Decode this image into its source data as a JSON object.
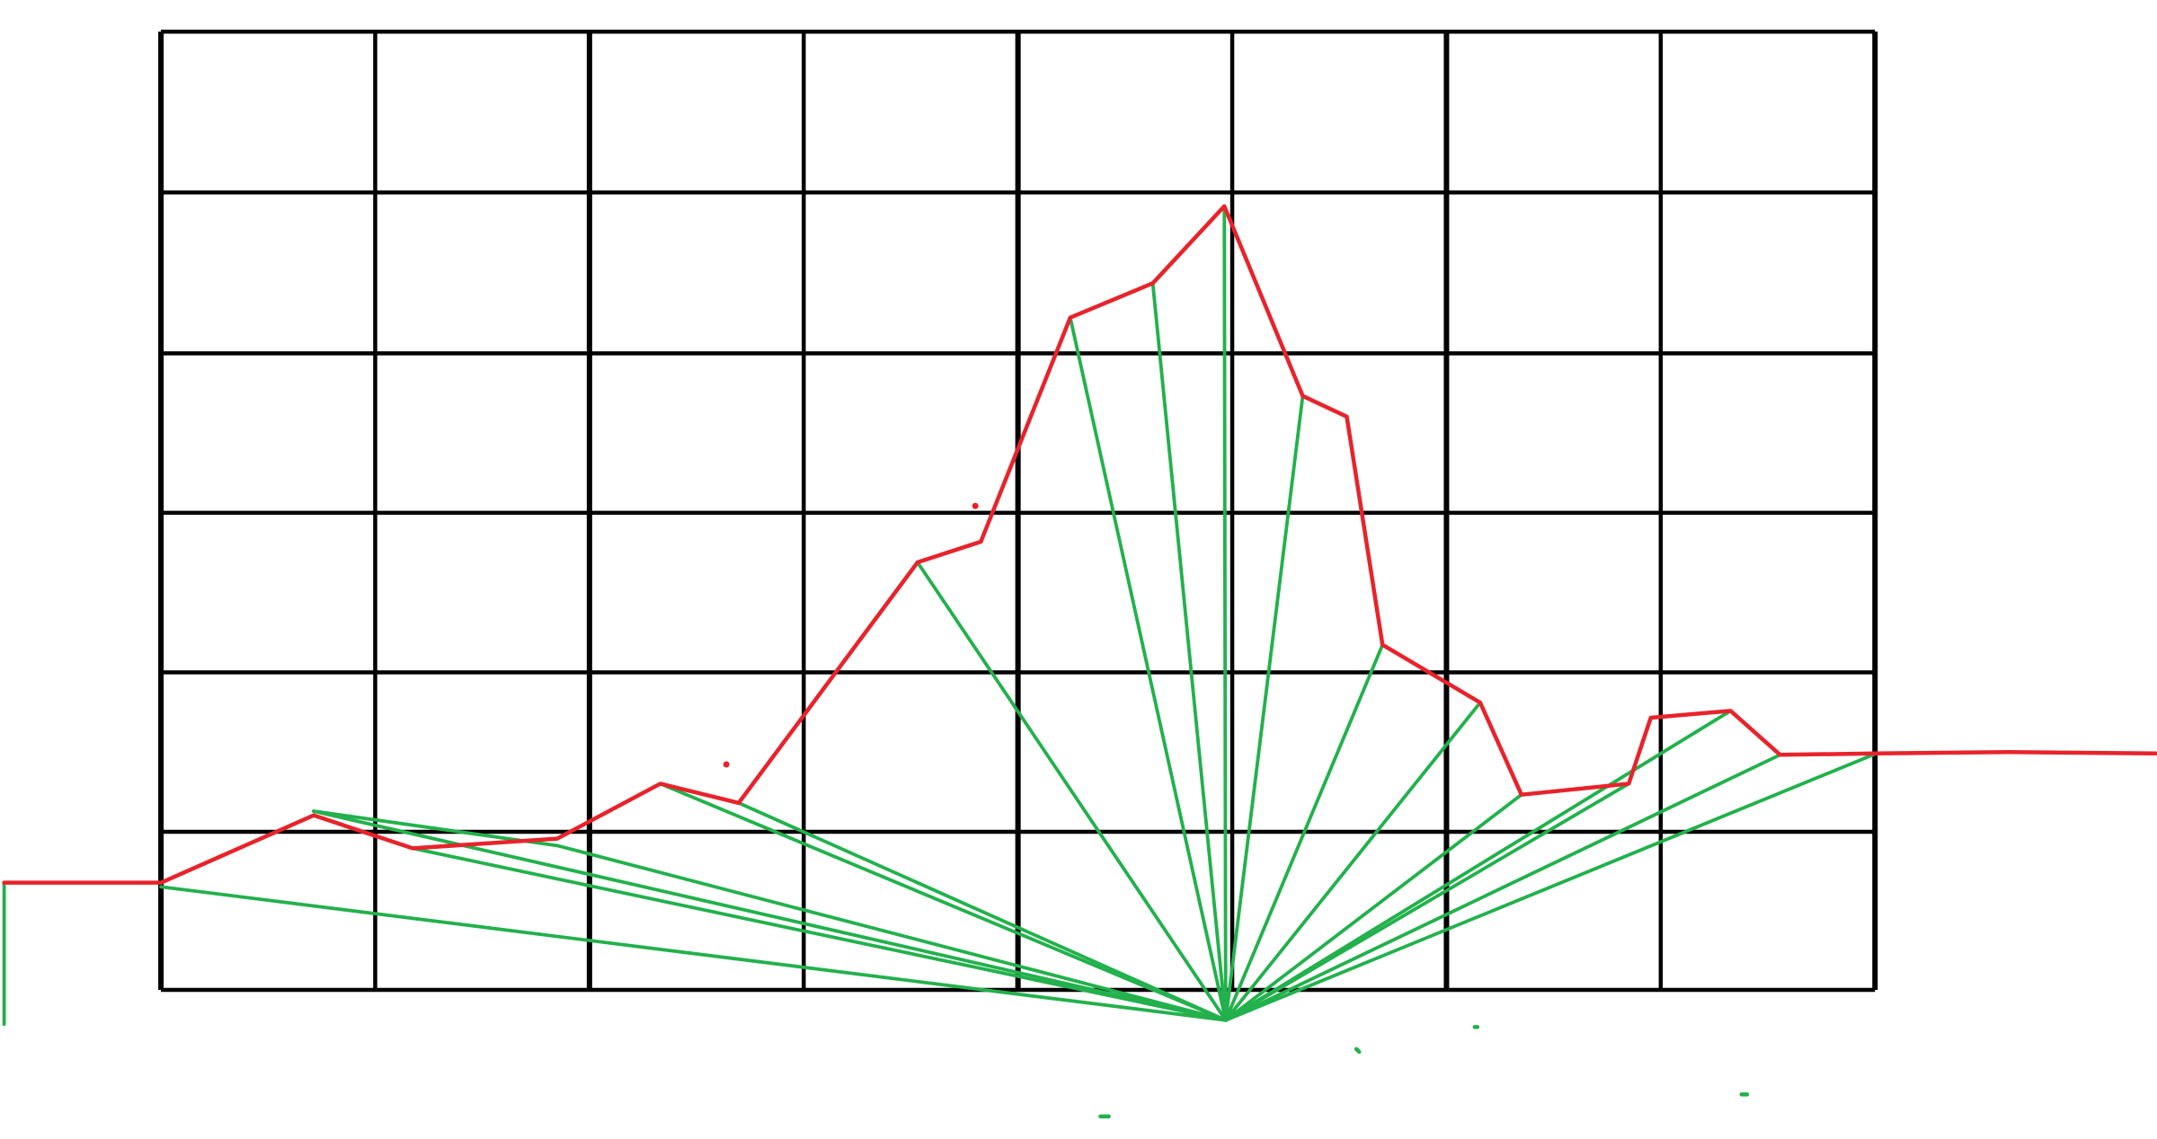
{
  "colors": {
    "background": "#ffffff",
    "grid": "#000000",
    "profile": "#e8232b",
    "rays": "#22b14c"
  },
  "diagram": {
    "grid": {
      "columns": 8,
      "rows": 6,
      "heavy_columns": [
        0,
        2,
        4,
        6,
        8
      ]
    },
    "profile_points": 25,
    "ray_count": 20
  }
}
